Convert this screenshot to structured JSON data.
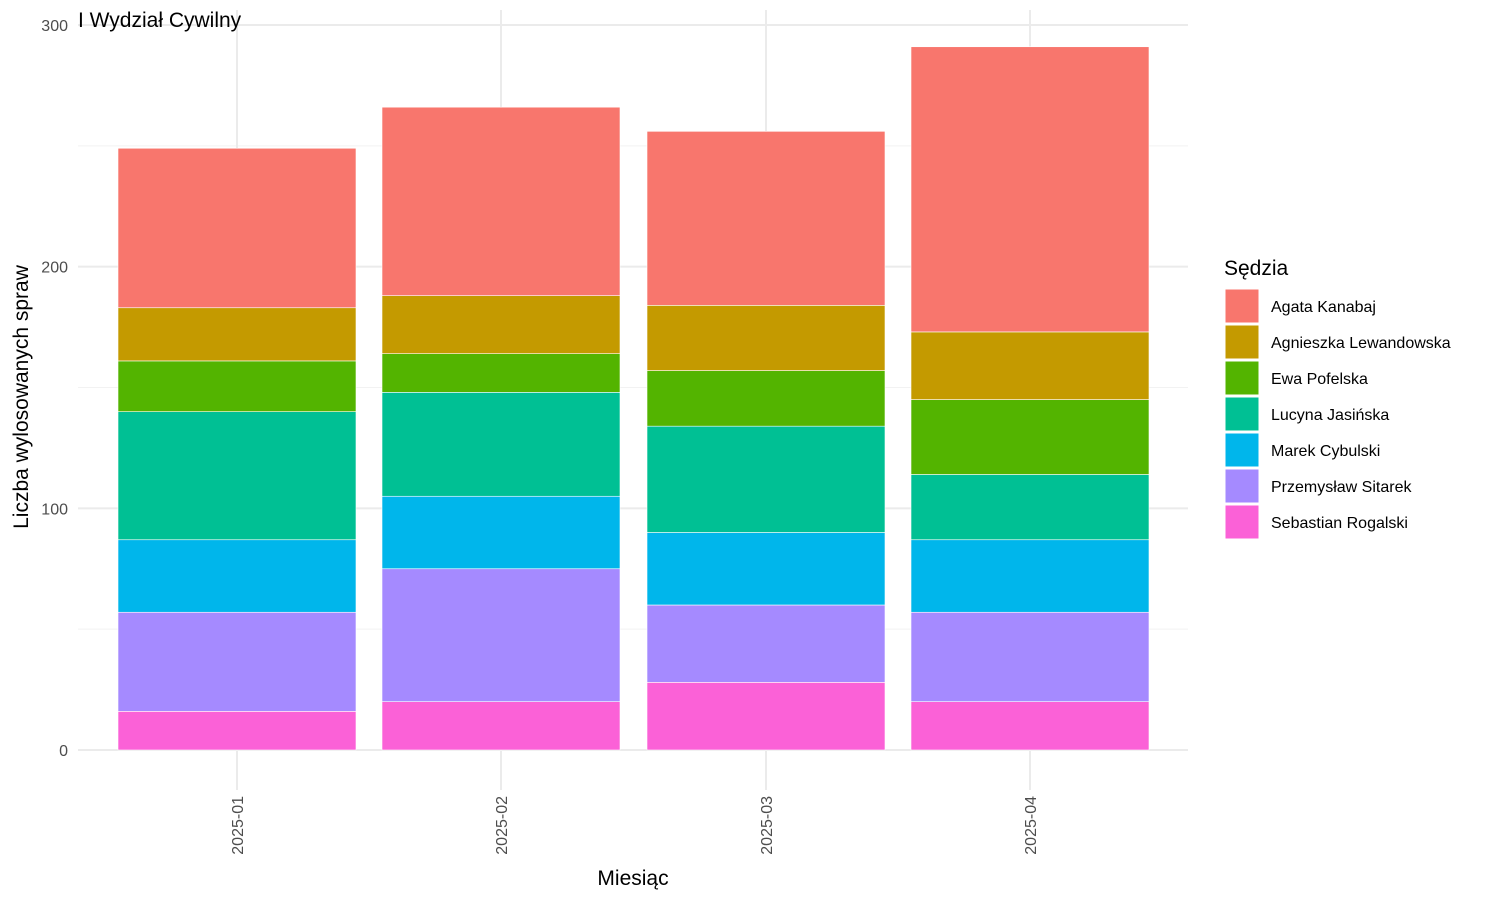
{
  "chart_data": {
    "type": "bar",
    "stacked": true,
    "title": "I Wydział Cywilny",
    "xlabel": "Miesiąc",
    "ylabel": "Liczba wylosowanych spraw",
    "ylim": [
      0,
      300
    ],
    "yticks": [
      0,
      100,
      200,
      300
    ],
    "grid": true,
    "legend_title": "Sędzia",
    "legend_position": "right",
    "categories": [
      "2025-01",
      "2025-02",
      "2025-03",
      "2025-04"
    ],
    "series": [
      {
        "name": "Agata Kanabaj",
        "color": "#F8766D",
        "values": [
          66,
          78,
          72,
          118
        ]
      },
      {
        "name": "Agnieszka Lewandowska",
        "color": "#C49A00",
        "values": [
          22,
          24,
          27,
          28
        ]
      },
      {
        "name": "Ewa Pofelska",
        "color": "#53B400",
        "values": [
          21,
          16,
          23,
          31
        ]
      },
      {
        "name": "Lucyna Jasińska",
        "color": "#00C094",
        "values": [
          53,
          43,
          44,
          27
        ]
      },
      {
        "name": "Marek Cybulski",
        "color": "#00B6EB",
        "values": [
          30,
          30,
          30,
          30
        ]
      },
      {
        "name": "Przemysław Sitarek",
        "color": "#A58AFF",
        "values": [
          41,
          55,
          32,
          37
        ]
      },
      {
        "name": "Sebastian Rogalski",
        "color": "#FB61D7",
        "values": [
          16,
          20,
          28,
          20
        ]
      }
    ]
  }
}
